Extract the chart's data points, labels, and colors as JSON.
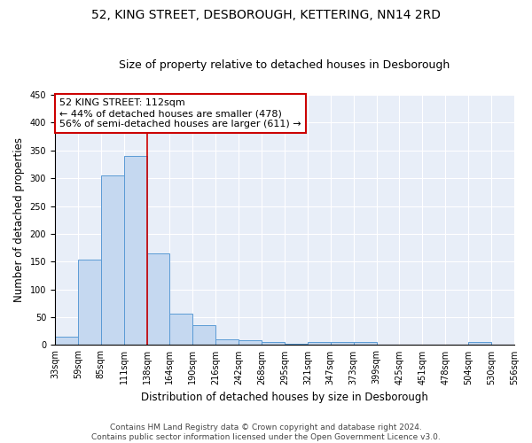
{
  "title": "52, KING STREET, DESBOROUGH, KETTERING, NN14 2RD",
  "subtitle": "Size of property relative to detached houses in Desborough",
  "xlabel": "Distribution of detached houses by size in Desborough",
  "ylabel": "Number of detached properties",
  "bar_color": "#c5d8f0",
  "bar_edge_color": "#5b9bd5",
  "bin_labels": [
    "33sqm",
    "59sqm",
    "85sqm",
    "111sqm",
    "138sqm",
    "164sqm",
    "190sqm",
    "216sqm",
    "242sqm",
    "268sqm",
    "295sqm",
    "321sqm",
    "347sqm",
    "373sqm",
    "399sqm",
    "425sqm",
    "451sqm",
    "478sqm",
    "504sqm",
    "530sqm",
    "556sqm"
  ],
  "bar_heights": [
    15,
    153,
    305,
    340,
    165,
    57,
    35,
    10,
    9,
    6,
    3,
    5,
    5,
    5,
    0,
    0,
    0,
    0,
    5,
    0
  ],
  "red_line_bin": 3,
  "annotation_line1": "52 KING STREET: 112sqm",
  "annotation_line2": "← 44% of detached houses are smaller (478)",
  "annotation_line3": "56% of semi-detached houses are larger (611) →",
  "annotation_box_color": "#ffffff",
  "annotation_border_color": "#cc0000",
  "ylim": [
    0,
    450
  ],
  "yticks": [
    0,
    50,
    100,
    150,
    200,
    250,
    300,
    350,
    400,
    450
  ],
  "background_color": "#e8eef8",
  "footer_text": "Contains HM Land Registry data © Crown copyright and database right 2024.\nContains public sector information licensed under the Open Government Licence v3.0.",
  "title_fontsize": 10,
  "subtitle_fontsize": 9,
  "xlabel_fontsize": 8.5,
  "ylabel_fontsize": 8.5,
  "tick_fontsize": 7,
  "annotation_fontsize": 8,
  "footer_fontsize": 6.5
}
